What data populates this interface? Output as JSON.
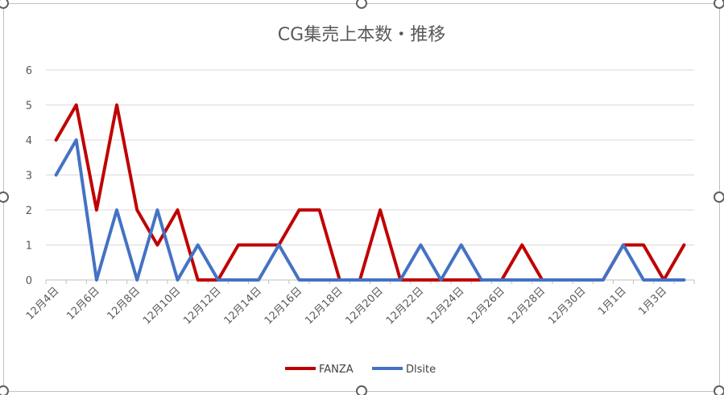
{
  "chart_data": {
    "type": "line",
    "title": "CG集売上本数・推移",
    "xlabel": "",
    "ylabel": "",
    "ylim": [
      0,
      6
    ],
    "yticks": [
      0,
      1,
      2,
      3,
      4,
      5,
      6
    ],
    "grid": true,
    "legend_position": "bottom",
    "x": [
      "12月4日",
      "12月5日",
      "12月6日",
      "12月7日",
      "12月8日",
      "12月9日",
      "12月10日",
      "12月11日",
      "12月12日",
      "12月13日",
      "12月14日",
      "12月15日",
      "12月16日",
      "12月17日",
      "12月18日",
      "12月19日",
      "12月20日",
      "12月21日",
      "12月22日",
      "12月23日",
      "12月24日",
      "12月25日",
      "12月26日",
      "12月27日",
      "12月28日",
      "12月29日",
      "12月30日",
      "12月31日",
      "1月1日",
      "1月2日",
      "1月3日",
      "1月4日"
    ],
    "x_tick_labels": [
      "12月4日",
      "12月6日",
      "12月8日",
      "12月10日",
      "12月12日",
      "12月14日",
      "12月16日",
      "12月18日",
      "12月20日",
      "12月22日",
      "12月24日",
      "12月26日",
      "12月28日",
      "12月30日",
      "1月1日",
      "1月3日"
    ],
    "series": [
      {
        "name": "FANZA",
        "color": "#c00000",
        "values": [
          4,
          5,
          2,
          5,
          2,
          1,
          2,
          0,
          0,
          1,
          1,
          1,
          2,
          2,
          0,
          0,
          2,
          0,
          0,
          0,
          0,
          0,
          0,
          1,
          0,
          0,
          0,
          0,
          1,
          1,
          0,
          1
        ]
      },
      {
        "name": "Dlsite",
        "color": "#4472c4",
        "values": [
          3,
          4,
          0,
          2,
          0,
          2,
          0,
          1,
          0,
          0,
          0,
          1,
          0,
          0,
          0,
          0,
          0,
          0,
          1,
          0,
          1,
          0,
          0,
          0,
          0,
          0,
          0,
          0,
          1,
          0,
          0,
          0
        ]
      }
    ]
  }
}
